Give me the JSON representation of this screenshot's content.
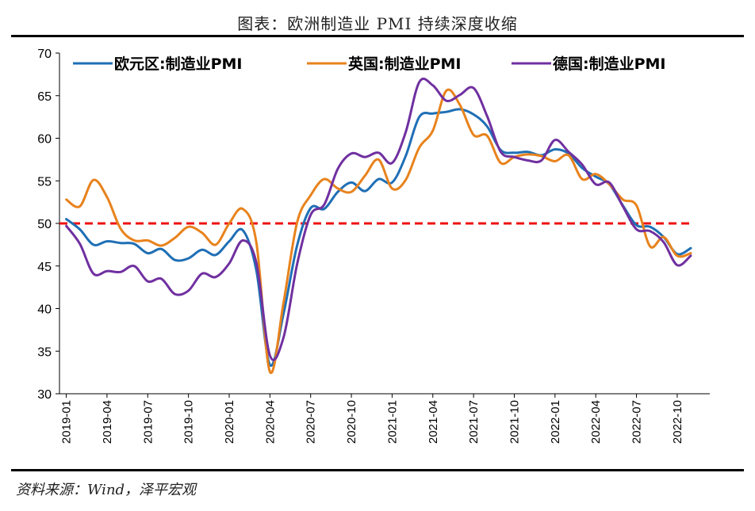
{
  "header": {
    "title": "图表：欧洲制造业 PMI 持续深度收缩"
  },
  "footer": {
    "source": "资料来源：Wind，泽平宏观"
  },
  "chart_data": {
    "type": "line",
    "ylim": [
      30,
      70
    ],
    "yticks": [
      30,
      35,
      40,
      45,
      50,
      55,
      60,
      65,
      70
    ],
    "reference_line": {
      "value": 50,
      "color": "#ee1111",
      "style": "dashed"
    },
    "x": [
      "2019-01",
      "2019-02",
      "2019-03",
      "2019-04",
      "2019-05",
      "2019-06",
      "2019-07",
      "2019-08",
      "2019-09",
      "2019-10",
      "2019-11",
      "2019-12",
      "2020-01",
      "2020-02",
      "2020-03",
      "2020-04",
      "2020-05",
      "2020-06",
      "2020-07",
      "2020-08",
      "2020-09",
      "2020-10",
      "2020-11",
      "2020-12",
      "2021-01",
      "2021-02",
      "2021-03",
      "2021-04",
      "2021-05",
      "2021-06",
      "2021-07",
      "2021-08",
      "2021-09",
      "2021-10",
      "2021-11",
      "2021-12",
      "2022-01",
      "2022-02",
      "2022-03",
      "2022-04",
      "2022-05",
      "2022-06",
      "2022-07",
      "2022-08",
      "2022-09",
      "2022-10",
      "2022-11"
    ],
    "xtick_labels": [
      "2019-01",
      "2019-04",
      "2019-07",
      "2019-10",
      "2020-01",
      "2020-04",
      "2020-07",
      "2020-10",
      "2021-01",
      "2021-04",
      "2021-07",
      "2021-10",
      "2022-01",
      "2022-04",
      "2022-07",
      "2022-10"
    ],
    "legend_position": "top",
    "series": [
      {
        "name": "欧元区:制造业PMI",
        "color": "#1f6fb5",
        "values": [
          50.5,
          49.3,
          47.5,
          47.9,
          47.7,
          47.6,
          46.5,
          47.0,
          45.7,
          45.9,
          46.9,
          46.3,
          47.9,
          49.2,
          44.5,
          33.4,
          39.4,
          47.4,
          51.8,
          51.7,
          53.7,
          54.8,
          53.8,
          55.2,
          54.8,
          57.9,
          62.5,
          62.9,
          63.1,
          63.4,
          62.8,
          61.4,
          58.6,
          58.3,
          58.4,
          58.0,
          58.7,
          58.2,
          56.5,
          55.5,
          54.6,
          52.1,
          49.8,
          49.6,
          48.4,
          46.4,
          47.1
        ]
      },
      {
        "name": "英国:制造业PMI",
        "color": "#e8821c",
        "values": [
          52.8,
          52.0,
          55.1,
          53.1,
          49.4,
          48.0,
          48.0,
          47.4,
          48.3,
          49.6,
          48.9,
          47.5,
          50.0,
          51.7,
          47.8,
          32.6,
          40.7,
          50.1,
          53.3,
          55.2,
          54.1,
          53.7,
          55.6,
          57.5,
          54.1,
          55.1,
          58.9,
          60.9,
          65.6,
          63.9,
          60.4,
          60.3,
          57.1,
          57.8,
          58.1,
          57.9,
          57.3,
          58.0,
          55.2,
          55.8,
          54.6,
          52.8,
          52.1,
          47.3,
          48.4,
          46.2,
          46.5
        ]
      },
      {
        "name": "德国:制造业PMI",
        "color": "#7030a0",
        "values": [
          49.7,
          47.6,
          44.1,
          44.4,
          44.3,
          45.0,
          43.2,
          43.5,
          41.7,
          42.1,
          44.1,
          43.7,
          45.3,
          48.0,
          45.4,
          34.5,
          36.6,
          45.2,
          51.0,
          52.2,
          56.4,
          58.2,
          57.8,
          58.3,
          57.1,
          60.7,
          66.6,
          66.2,
          64.4,
          65.1,
          65.9,
          62.6,
          58.4,
          57.8,
          57.4,
          57.4,
          59.8,
          58.4,
          56.9,
          54.6,
          54.8,
          52.0,
          49.3,
          49.1,
          47.8,
          45.1,
          46.2
        ]
      }
    ]
  }
}
